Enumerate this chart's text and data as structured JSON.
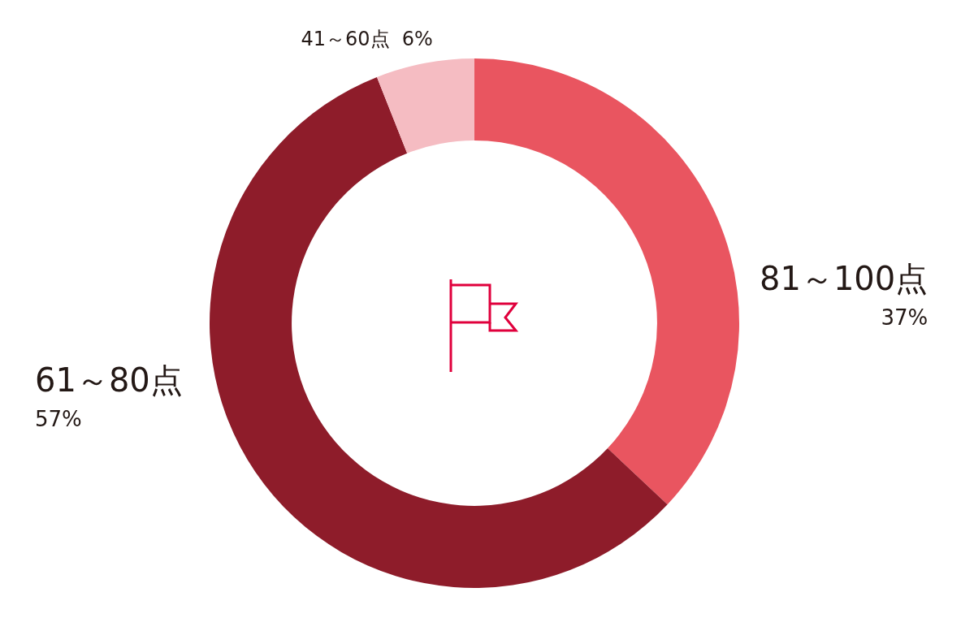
{
  "chart_data": {
    "type": "donut",
    "categories": [
      "81～100点",
      "61～80点",
      "41～60点"
    ],
    "values": [
      37,
      57,
      6
    ],
    "colors": [
      "#e95560",
      "#8e1c2a",
      "#f5bcc2"
    ],
    "value_labels": [
      "37%",
      "57%",
      "6%"
    ],
    "legend": false
  }
}
